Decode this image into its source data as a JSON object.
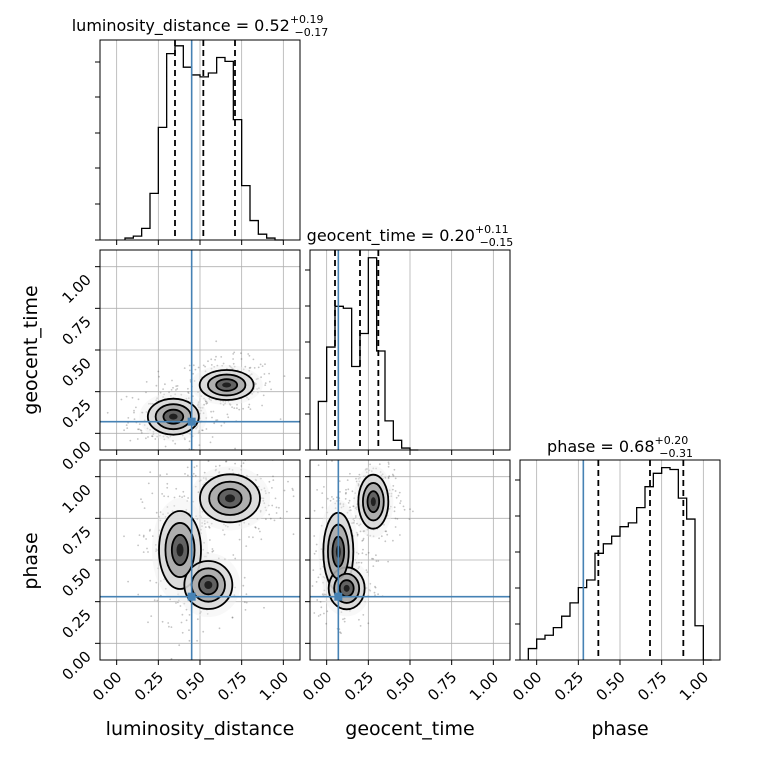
{
  "chart_data": {
    "type": "corner",
    "parameters": [
      "luminosity_distance",
      "geocent_time",
      "phase"
    ],
    "axis_range": [
      -0.1,
      1.1
    ],
    "tick_values": [
      0.0,
      0.25,
      0.5,
      0.75,
      1.0
    ],
    "tick_labels": [
      "0.00",
      "0.25",
      "0.50",
      "0.75",
      "1.00"
    ],
    "grid": true,
    "colors": {
      "truth": "#4682b4",
      "hist": "#000000",
      "density_dark": "#222222",
      "density_light": "#bbbbbb"
    },
    "truths": {
      "luminosity_distance": 0.45,
      "geocent_time": 0.07,
      "phase": 0.28
    },
    "titles": [
      {
        "param": "luminosity_distance",
        "prefix": "luminosity_distance = 0.52",
        "upper": "+0.19",
        "lower": "−0.17"
      },
      {
        "param": "geocent_time",
        "prefix": "geocent_time = 0.20",
        "upper": "+0.11",
        "lower": "−0.15"
      },
      {
        "param": "phase",
        "prefix": "phase = 0.68",
        "upper": "+0.20",
        "lower": "−0.31"
      }
    ],
    "quantiles": {
      "luminosity_distance": [
        0.35,
        0.52,
        0.71
      ],
      "geocent_time": [
        0.05,
        0.2,
        0.31
      ],
      "phase": [
        0.37,
        0.68,
        0.88
      ]
    },
    "histograms": {
      "luminosity_distance": {
        "edges": [
          0.05,
          0.1,
          0.15,
          0.2,
          0.25,
          0.3,
          0.35,
          0.4,
          0.45,
          0.5,
          0.55,
          0.6,
          0.65,
          0.7,
          0.75,
          0.8,
          0.85,
          0.9,
          0.95,
          1.0
        ],
        "counts": [
          0.01,
          0.02,
          0.06,
          0.24,
          0.58,
          0.96,
          1.0,
          0.89,
          0.85,
          0.84,
          0.86,
          0.94,
          0.92,
          0.62,
          0.28,
          0.1,
          0.03,
          0.01,
          0.0
        ],
        "ymax": 1.03
      },
      "geocent_time": {
        "edges": [
          -0.05,
          0.0,
          0.05,
          0.1,
          0.15,
          0.2,
          0.25,
          0.3,
          0.35,
          0.4,
          0.45,
          0.5,
          0.55
        ],
        "counts": [
          0.25,
          0.53,
          0.74,
          0.73,
          0.43,
          0.6,
          0.99,
          0.51,
          0.15,
          0.05,
          0.01,
          0.0
        ],
        "ymax": 1.03
      },
      "phase": {
        "edges": [
          -0.05,
          0.0,
          0.05,
          0.1,
          0.15,
          0.2,
          0.25,
          0.3,
          0.35,
          0.4,
          0.45,
          0.5,
          0.55,
          0.6,
          0.65,
          0.7,
          0.75,
          0.8,
          0.85,
          0.9,
          0.95,
          1.0,
          1.05
        ],
        "counts": [
          0.06,
          0.11,
          0.13,
          0.17,
          0.23,
          0.3,
          0.38,
          0.42,
          0.56,
          0.61,
          0.65,
          0.7,
          0.72,
          0.8,
          0.91,
          0.98,
          1.01,
          1.0,
          0.85,
          0.74,
          0.18,
          0.0
        ],
        "ymax": 1.05
      }
    },
    "density_modes": {
      "geocent_time_vs_luminosity_distance": [
        {
          "x": 0.34,
          "y": 0.1,
          "sx": 0.085,
          "sy": 0.06,
          "w": 1.0
        },
        {
          "x": 0.66,
          "y": 0.29,
          "sx": 0.09,
          "sy": 0.05,
          "w": 1.0
        }
      ],
      "phase_vs_luminosity_distance": [
        {
          "x": 0.68,
          "y": 0.87,
          "sx": 0.1,
          "sy": 0.08,
          "w": 1.0
        },
        {
          "x": 0.38,
          "y": 0.56,
          "sx": 0.07,
          "sy": 0.13,
          "w": 0.9
        },
        {
          "x": 0.55,
          "y": 0.35,
          "sx": 0.08,
          "sy": 0.08,
          "w": 0.35
        }
      ],
      "phase_vs_geocent_time": [
        {
          "x": 0.28,
          "y": 0.85,
          "sx": 0.05,
          "sy": 0.09,
          "w": 1.0
        },
        {
          "x": 0.07,
          "y": 0.55,
          "sx": 0.05,
          "sy": 0.13,
          "w": 0.9
        },
        {
          "x": 0.12,
          "y": 0.33,
          "sx": 0.06,
          "sy": 0.07,
          "w": 0.35
        }
      ]
    }
  }
}
